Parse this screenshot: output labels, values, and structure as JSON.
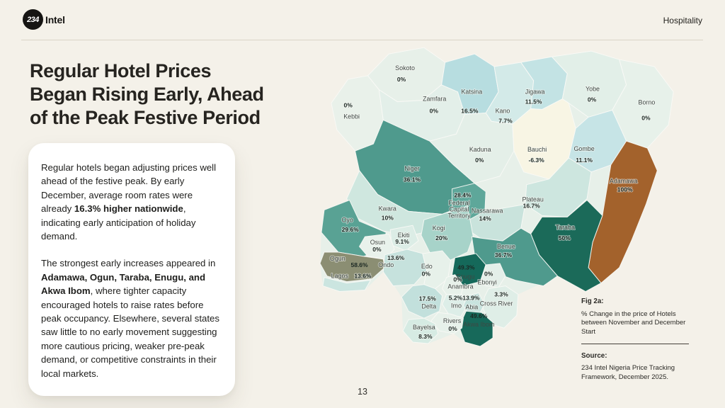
{
  "header": {
    "logo_number": "234",
    "logo_text": "Intel",
    "category": "Hospitality"
  },
  "title": {
    "line1": "Regular Hotel Prices",
    "line2": "Began Rising Early, Ahead",
    "line3": "of the Peak Festive Period"
  },
  "card": {
    "para1": {
      "pre": "Regular hotels began adjusting prices well ahead of the festive peak. By early December, average room rates were already ",
      "bold": "16.3% higher nationwide",
      "post": ", indicating early anticipation of holiday demand."
    },
    "para2": {
      "pre": "The strongest early increases appeared in ",
      "bold": "Adamawa, Ogun, Taraba, Enugu, and Akwa Ibom",
      "post": ", where tighter capacity encouraged hotels to raise rates before peak occupancy. Elsewhere, several states saw little to no early movement suggesting more cautious pricing, weaker pre-peak demand, or competitive constraints in their local markets."
    }
  },
  "figure": {
    "label": "Fig 2a:",
    "caption": "% Change in the price of Hotels between November and December Start",
    "source_label": "Source:",
    "source_text": "234 Intel Nigeria Price Tracking Framework, December 2025."
  },
  "footer": {
    "page_number": "13"
  },
  "chart_data": {
    "type": "heatmap",
    "subtype": "choropleth-map",
    "region": "Nigeria (36 states + FCT)",
    "title": "% Change in the price of Hotels between November and December Start",
    "unit": "%",
    "legend_position": "none",
    "accent_colors": {
      "low": "#e7f0e9",
      "mid": "#4f9a8d",
      "high": "#17695a",
      "outlier_brown": "#a3622c",
      "outlier_olive": "#8b8e73",
      "negative_cream": "#f8f5e4"
    },
    "states": [
      {
        "id": "sokoto",
        "name": "Sokoto",
        "value": "0%",
        "color": "#e7f0e9"
      },
      {
        "id": "kebbi",
        "name": "Kebbi",
        "value": "0%",
        "color": "#e9f1ea"
      },
      {
        "id": "zamfara",
        "name": "Zamfara",
        "value": "0%",
        "color": "#e3efe9"
      },
      {
        "id": "katsina",
        "name": "Katsina",
        "value": "16.5%",
        "color": "#b7dde0"
      },
      {
        "id": "kano",
        "name": "Kano",
        "value": "7.7%",
        "color": "#d3eae8"
      },
      {
        "id": "jigawa",
        "name": "Jigawa",
        "value": "11.5%",
        "color": "#c3e3e4"
      },
      {
        "id": "yobe",
        "name": "Yobe",
        "value": "0%",
        "color": "#e2efe8"
      },
      {
        "id": "borno",
        "name": "Borno",
        "value": "0%",
        "color": "#e7f1ea"
      },
      {
        "id": "kaduna",
        "name": "Kaduna",
        "value": "0%",
        "color": "#e4efe8"
      },
      {
        "id": "bauchi",
        "name": "Bauchi",
        "value": "-6.3%",
        "color": "#f8f5e4"
      },
      {
        "id": "gombe",
        "name": "Gombe",
        "value": "11.1%",
        "color": "#c6e4e6"
      },
      {
        "id": "niger",
        "name": "Niger",
        "value": "36.1%",
        "color": "#4f9a8d"
      },
      {
        "id": "adamawa",
        "name": "Adamawa",
        "value": "100%",
        "color": "#a3622c"
      },
      {
        "id": "fct",
        "name": "Federal Capital Territory",
        "value": "28.4%",
        "color": "#5ea79a"
      },
      {
        "id": "plateau",
        "name": "Plateau",
        "value": "16.7%",
        "color": "#cde6df"
      },
      {
        "id": "nassarawa",
        "name": "Nassarawa",
        "value": "14%",
        "color": "#c9e3dc"
      },
      {
        "id": "kwara",
        "name": "Kwara",
        "value": "10%",
        "color": "#cfe7df"
      },
      {
        "id": "taraba",
        "name": "Taraba",
        "value": "50%",
        "color": "#1b6a59"
      },
      {
        "id": "oyo",
        "name": "Oyo",
        "value": "29.6%",
        "color": "#59a294"
      },
      {
        "id": "kogi",
        "name": "Kogi",
        "value": "20%",
        "color": "#a7d3c9"
      },
      {
        "id": "ekiti",
        "name": "Ekiti",
        "value": "9.1%",
        "color": "#dcede6"
      },
      {
        "id": "osun",
        "name": "Osun",
        "value": "0%",
        "color": "#e9f2ec"
      },
      {
        "id": "benue",
        "name": "Benue",
        "value": "36.7%",
        "color": "#4f9a8d"
      },
      {
        "id": "ogun",
        "name": "Ogun",
        "value": "58.6%",
        "color": "#8b8e73",
        "value_color": "#f5f5ef"
      },
      {
        "id": "ondo",
        "name": "Ondo",
        "value": "13.6%",
        "color": "#c6e2dd"
      },
      {
        "id": "lagos",
        "name": "Lagos",
        "value": "13.6%",
        "color": "#cbe5e0"
      },
      {
        "id": "edo",
        "name": "Edo",
        "value": "0%",
        "color": "#e7f1ea"
      },
      {
        "id": "enugu",
        "name": "Enugu",
        "value": "49.3%",
        "color": "#15695a",
        "name_color": "#eef4f1",
        "value_color": "#f2f7f4"
      },
      {
        "id": "ebonyi",
        "name": "Ebonyi",
        "value": "0%",
        "color": "#e4efe9"
      },
      {
        "id": "anambra",
        "name": "Anambra",
        "value": "0%",
        "color": "#e7f1ea"
      },
      {
        "id": "delta",
        "name": "Delta",
        "value": "17.5%",
        "color": "#c2e0dc"
      },
      {
        "id": "imo",
        "name": "Imo",
        "value": "5.2%",
        "color": "#ddeee8"
      },
      {
        "id": "abia",
        "name": "Abia",
        "value": "13.9%",
        "color": "#c8e3de"
      },
      {
        "id": "cross_river",
        "name": "Cross River",
        "value": "3.3%",
        "color": "#dfeee7"
      },
      {
        "id": "akwa_ibom",
        "name": "Akwa Ibom",
        "value": "49.6%",
        "color": "#17695a",
        "name_color": "#c9d3cd",
        "value_color": "#eef4f0"
      },
      {
        "id": "rivers",
        "name": "Rivers",
        "value": "0%",
        "color": "#e7f1ea"
      },
      {
        "id": "bayelsa",
        "name": "Bayelsa",
        "value": "8.3%",
        "color": "#d6ebe3"
      }
    ]
  }
}
